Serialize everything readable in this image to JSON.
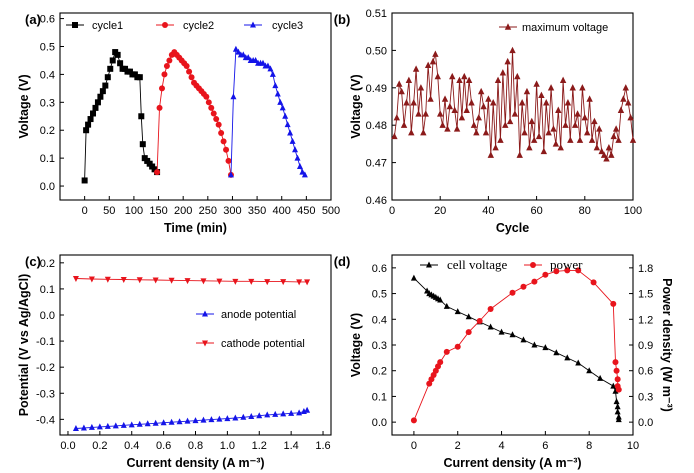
{
  "panels": {
    "a": "(a)",
    "b": "(b)",
    "c": "(c)",
    "d": "(d)"
  },
  "chart_data": [
    {
      "panel": "(a)",
      "type": "line",
      "xlabel": "Time (min)",
      "ylabel": "Voltage (V)",
      "xlim": [
        -50,
        500
      ],
      "ylim": [
        -0.05,
        0.62
      ],
      "xticks": [
        0,
        50,
        100,
        150,
        200,
        250,
        300,
        350,
        400,
        450,
        500
      ],
      "yticks": [
        0.0,
        0.1,
        0.2,
        0.3,
        0.4,
        0.5,
        0.6
      ],
      "legend_position": "top",
      "series": [
        {
          "name": "cycle1",
          "color": "#000000",
          "marker": "square",
          "x": [
            0,
            3,
            7,
            12,
            17,
            22,
            27,
            32,
            37,
            42,
            47,
            52,
            57,
            62,
            67,
            72,
            77,
            82,
            87,
            92,
            97,
            102,
            107,
            112,
            115,
            118,
            122,
            127,
            132,
            137,
            142,
            147
          ],
          "y": [
            0.02,
            0.2,
            0.22,
            0.24,
            0.26,
            0.28,
            0.3,
            0.32,
            0.34,
            0.36,
            0.39,
            0.42,
            0.45,
            0.48,
            0.47,
            0.44,
            0.42,
            0.42,
            0.41,
            0.41,
            0.4,
            0.4,
            0.39,
            0.39,
            0.25,
            0.15,
            0.1,
            0.09,
            0.08,
            0.07,
            0.06,
            0.05
          ]
        },
        {
          "name": "cycle2",
          "color": "#e8141c",
          "marker": "circle",
          "x": [
            147,
            152,
            157,
            162,
            167,
            172,
            177,
            182,
            187,
            192,
            197,
            202,
            207,
            212,
            217,
            222,
            227,
            232,
            237,
            242,
            247,
            252,
            257,
            262,
            267,
            272,
            277,
            282,
            287,
            292,
            297
          ],
          "y": [
            0.05,
            0.28,
            0.35,
            0.4,
            0.43,
            0.45,
            0.47,
            0.48,
            0.47,
            0.46,
            0.45,
            0.44,
            0.43,
            0.41,
            0.39,
            0.37,
            0.36,
            0.35,
            0.34,
            0.33,
            0.32,
            0.3,
            0.28,
            0.26,
            0.24,
            0.22,
            0.19,
            0.16,
            0.13,
            0.09,
            0.04
          ]
        },
        {
          "name": "cycle3",
          "color": "#1414e8",
          "marker": "triangle-up",
          "x": [
            297,
            302,
            307,
            312,
            317,
            322,
            327,
            332,
            337,
            342,
            347,
            352,
            357,
            362,
            367,
            372,
            377,
            382,
            387,
            392,
            397,
            402,
            407,
            412,
            417,
            422,
            427,
            432,
            437,
            442,
            447
          ],
          "y": [
            0.04,
            0.32,
            0.49,
            0.48,
            0.47,
            0.47,
            0.46,
            0.46,
            0.45,
            0.45,
            0.45,
            0.44,
            0.44,
            0.44,
            0.43,
            0.43,
            0.42,
            0.4,
            0.36,
            0.33,
            0.3,
            0.28,
            0.25,
            0.22,
            0.19,
            0.16,
            0.13,
            0.1,
            0.07,
            0.05,
            0.04
          ]
        }
      ]
    },
    {
      "panel": "(b)",
      "type": "line",
      "xlabel": "Cycle",
      "ylabel": "Voltage (V)",
      "xlim": [
        0,
        100
      ],
      "ylim": [
        0.46,
        0.51
      ],
      "xticks": [
        0,
        20,
        40,
        60,
        80,
        100
      ],
      "yticks": [
        0.46,
        0.47,
        0.48,
        0.49,
        0.5,
        0.51
      ],
      "legend_position": "top-right",
      "series": [
        {
          "name": "maximum voltage",
          "color": "#8b1a1a",
          "marker": "triangle-up",
          "x": [
            1,
            2,
            3,
            4,
            5,
            6,
            7,
            8,
            9,
            10,
            11,
            12,
            13,
            14,
            15,
            16,
            17,
            18,
            19,
            20,
            21,
            22,
            23,
            24,
            25,
            26,
            27,
            28,
            29,
            30,
            31,
            32,
            33,
            34,
            35,
            36,
            37,
            38,
            39,
            40,
            41,
            42,
            43,
            44,
            45,
            46,
            47,
            48,
            49,
            50,
            51,
            52,
            53,
            54,
            55,
            56,
            57,
            58,
            59,
            60,
            61,
            62,
            63,
            64,
            65,
            66,
            67,
            68,
            69,
            70,
            71,
            72,
            73,
            74,
            75,
            76,
            77,
            78,
            79,
            80,
            81,
            82,
            83,
            84,
            85,
            86,
            87,
            88,
            89,
            90,
            91,
            92,
            93,
            94,
            95,
            96,
            97,
            98,
            99,
            100
          ],
          "y": [
            0.477,
            0.482,
            0.491,
            0.489,
            0.48,
            0.486,
            0.492,
            0.478,
            0.486,
            0.495,
            0.483,
            0.49,
            0.478,
            0.483,
            0.496,
            0.487,
            0.497,
            0.499,
            0.493,
            0.483,
            0.48,
            0.487,
            0.479,
            0.485,
            0.493,
            0.484,
            0.479,
            0.492,
            0.482,
            0.493,
            0.484,
            0.492,
            0.486,
            0.48,
            0.478,
            0.482,
            0.489,
            0.485,
            0.478,
            0.487,
            0.472,
            0.486,
            0.474,
            0.492,
            0.476,
            0.494,
            0.48,
            0.497,
            0.481,
            0.5,
            0.483,
            0.493,
            0.472,
            0.486,
            0.478,
            0.489,
            0.474,
            0.481,
            0.476,
            0.491,
            0.477,
            0.488,
            0.473,
            0.486,
            0.478,
            0.49,
            0.479,
            0.475,
            0.484,
            0.474,
            0.492,
            0.48,
            0.486,
            0.476,
            0.49,
            0.48,
            0.483,
            0.476,
            0.49,
            0.482,
            0.478,
            0.487,
            0.476,
            0.481,
            0.474,
            0.479,
            0.473,
            0.472,
            0.471,
            0.474,
            0.472,
            0.477,
            0.479,
            0.476,
            0.484,
            0.487,
            0.49,
            0.486,
            0.482,
            0.476
          ]
        }
      ]
    },
    {
      "panel": "(c)",
      "type": "line",
      "xlabel": "Current density (A m⁻³)",
      "ylabel": "Potential (V vs Ag/AgCl)",
      "xlim": [
        -0.05,
        1.65
      ],
      "ylim": [
        -0.46,
        0.23
      ],
      "xticks": [
        0.0,
        0.2,
        0.4,
        0.6,
        0.8,
        1.0,
        1.2,
        1.4,
        1.6
      ],
      "yticks": [
        -0.4,
        -0.3,
        -0.2,
        -0.1,
        0.0,
        0.1,
        0.2
      ],
      "legend_position": "right",
      "series": [
        {
          "name": "anode potential",
          "color": "#1414e8",
          "marker": "triangle-up",
          "x": [
            0.05,
            0.1,
            0.15,
            0.2,
            0.25,
            0.3,
            0.35,
            0.4,
            0.45,
            0.5,
            0.55,
            0.6,
            0.65,
            0.7,
            0.75,
            0.8,
            0.85,
            0.9,
            0.95,
            1.0,
            1.05,
            1.1,
            1.15,
            1.2,
            1.25,
            1.3,
            1.35,
            1.4,
            1.45,
            1.48,
            1.5
          ],
          "y": [
            -0.435,
            -0.433,
            -0.431,
            -0.429,
            -0.427,
            -0.425,
            -0.423,
            -0.421,
            -0.419,
            -0.417,
            -0.415,
            -0.413,
            -0.411,
            -0.409,
            -0.407,
            -0.405,
            -0.403,
            -0.401,
            -0.399,
            -0.397,
            -0.395,
            -0.392,
            -0.389,
            -0.386,
            -0.383,
            -0.381,
            -0.379,
            -0.377,
            -0.375,
            -0.37,
            -0.365
          ]
        },
        {
          "name": "cathode potential",
          "color": "#e8141c",
          "marker": "triangle-down",
          "x": [
            0.05,
            0.15,
            0.25,
            0.35,
            0.45,
            0.55,
            0.65,
            0.75,
            0.85,
            0.95,
            1.05,
            1.15,
            1.25,
            1.35,
            1.45,
            1.5
          ],
          "y": [
            0.14,
            0.138,
            0.137,
            0.136,
            0.135,
            0.134,
            0.133,
            0.132,
            0.131,
            0.13,
            0.129,
            0.129,
            0.128,
            0.128,
            0.127,
            0.127
          ]
        }
      ]
    },
    {
      "panel": "(d)",
      "type": "line",
      "xlabel": "Current density (A m⁻³)",
      "ylabel": "Voltage (V)",
      "y2label": "Power density (W m⁻³)",
      "xlim": [
        -1,
        10
      ],
      "ylim": [
        -0.05,
        0.65
      ],
      "y2lim": [
        -0.15,
        1.95
      ],
      "xticks": [
        0,
        2,
        4,
        6,
        8,
        10
      ],
      "yticks": [
        0.0,
        0.1,
        0.2,
        0.3,
        0.4,
        0.5,
        0.6
      ],
      "y2ticks": [
        0.0,
        0.3,
        0.6,
        0.9,
        1.2,
        1.5,
        1.8
      ],
      "legend_position": "top-left",
      "series": [
        {
          "name": "cell voltage",
          "color": "#000000",
          "marker": "triangle-up",
          "axis": "left",
          "x": [
            0.0,
            0.6,
            0.7,
            0.8,
            0.9,
            1.0,
            1.1,
            1.2,
            1.5,
            2.0,
            2.5,
            3.0,
            3.5,
            4.0,
            4.5,
            5.0,
            5.5,
            6.0,
            6.5,
            7.0,
            7.5,
            8.0,
            8.5,
            9.1,
            9.2,
            9.25,
            9.3,
            9.3,
            9.35,
            9.35
          ],
          "y": [
            0.56,
            0.51,
            0.5,
            0.495,
            0.49,
            0.485,
            0.48,
            0.475,
            0.45,
            0.43,
            0.41,
            0.39,
            0.37,
            0.35,
            0.34,
            0.32,
            0.3,
            0.29,
            0.27,
            0.25,
            0.23,
            0.2,
            0.17,
            0.14,
            0.12,
            0.08,
            0.06,
            0.04,
            0.02,
            0.01
          ]
        },
        {
          "name": "power",
          "color": "#e8141c",
          "marker": "circle",
          "axis": "right",
          "x": [
            0.0,
            0.7,
            0.8,
            0.9,
            1.0,
            1.1,
            1.2,
            1.5,
            2.0,
            2.5,
            3.0,
            3.5,
            4.5,
            5.0,
            5.5,
            6.0,
            6.5,
            7.0,
            7.5,
            8.2,
            9.1,
            9.2,
            9.25,
            9.3,
            9.3,
            9.35
          ],
          "y": [
            0.02,
            0.45,
            0.5,
            0.55,
            0.6,
            0.65,
            0.7,
            0.82,
            0.88,
            1.05,
            1.18,
            1.32,
            1.51,
            1.58,
            1.64,
            1.72,
            1.76,
            1.77,
            1.77,
            1.63,
            1.38,
            0.7,
            0.6,
            0.5,
            0.42,
            0.38
          ]
        }
      ]
    }
  ]
}
